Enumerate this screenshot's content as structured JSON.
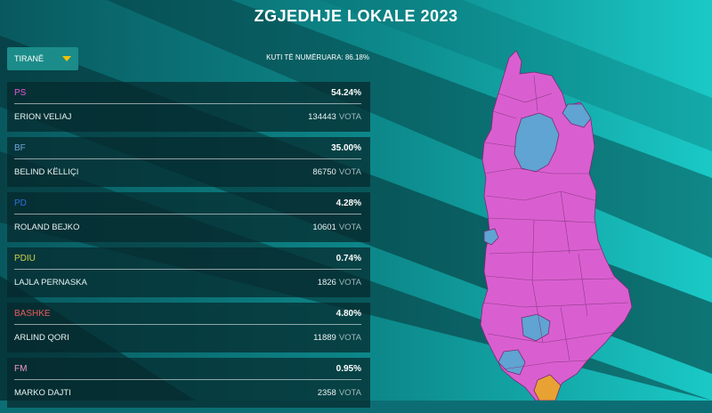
{
  "title": "ZGJEDHJE LOKALE 2023",
  "dropdown": {
    "selected": "TIRANË"
  },
  "counted": "KUTI TË NUMËRUARA: 86.18%",
  "vote_unit": "VOTA",
  "results": [
    {
      "party": "PS",
      "party_color": "#e35ad6",
      "percent": "54.24%",
      "candidate": "ERION VELIAJ",
      "votes": "134443"
    },
    {
      "party": "BF",
      "party_color": "#6fa6dc",
      "percent": "35.00%",
      "candidate": "BELIND KËLLIÇI",
      "votes": "86750"
    },
    {
      "party": "PD",
      "party_color": "#2f6fe0",
      "percent": "4.28%",
      "candidate": "ROLAND BEJKO",
      "votes": "10601"
    },
    {
      "party": "PDIU",
      "party_color": "#cfd24a",
      "percent": "0.74%",
      "candidate": "LAJLA PERNASKA",
      "votes": "1826"
    },
    {
      "party": "BASHKE",
      "party_color": "#e85a5a",
      "percent": "4.80%",
      "candidate": "ARLIND QORI",
      "votes": "11889"
    },
    {
      "party": "FM",
      "party_color": "#f39ac7",
      "percent": "0.95%",
      "candidate": "MARKO DAJTI",
      "votes": "2358"
    }
  ],
  "map_colors": {
    "ps": "#d95fd0",
    "bf": "#5fa4d2",
    "other": "#e8a233"
  }
}
